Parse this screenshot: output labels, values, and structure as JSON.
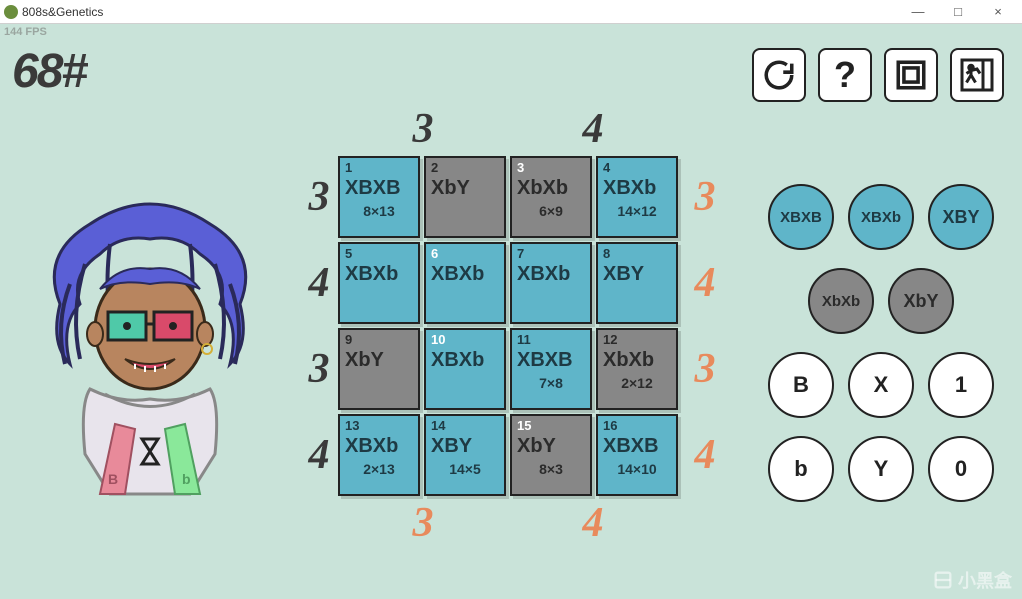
{
  "window": {
    "title": "808s&Genetics",
    "minimize": "—",
    "maximize": "□",
    "close": "×"
  },
  "hud": {
    "fps": "144 FPS",
    "score": "68#"
  },
  "toolbar": {
    "reload": "reload",
    "help": "?",
    "layout": "layout",
    "exit": "exit"
  },
  "colors": {
    "bg": "#c9e3d9",
    "cell_blue": "#5fb5c9",
    "cell_gray": "#878787",
    "accent_orange": "#e88a5c",
    "text_dark": "#3a3a3a"
  },
  "board": {
    "col_top": [
      "3",
      "4"
    ],
    "col_bottom": [
      "3",
      "4"
    ],
    "row_left": [
      "3",
      "4",
      "3",
      "4"
    ],
    "row_right": [
      "3",
      "4",
      "3",
      "4"
    ],
    "cells": [
      {
        "idx": "1",
        "idx_color": "dark",
        "geno": "XBXB",
        "sub": "8×13",
        "color": "blue"
      },
      {
        "idx": "2",
        "idx_color": "dark",
        "geno": "XbY",
        "sub": "",
        "color": "gray"
      },
      {
        "idx": "3",
        "idx_color": "white",
        "geno": "XbXb",
        "sub": "6×9",
        "color": "gray"
      },
      {
        "idx": "4",
        "idx_color": "dark",
        "geno": "XBXb",
        "sub": "14×12",
        "color": "blue"
      },
      {
        "idx": "5",
        "idx_color": "dark",
        "geno": "XBXb",
        "sub": "",
        "color": "blue"
      },
      {
        "idx": "6",
        "idx_color": "white",
        "geno": "XBXb",
        "sub": "",
        "color": "blue"
      },
      {
        "idx": "7",
        "idx_color": "dark",
        "geno": "XBXb",
        "sub": "",
        "color": "blue"
      },
      {
        "idx": "8",
        "idx_color": "dark",
        "geno": "XBY",
        "sub": "",
        "color": "blue"
      },
      {
        "idx": "9",
        "idx_color": "dark",
        "geno": "XbY",
        "sub": "",
        "color": "gray"
      },
      {
        "idx": "10",
        "idx_color": "white",
        "geno": "XBXb",
        "sub": "",
        "color": "blue"
      },
      {
        "idx": "11",
        "idx_color": "dark",
        "geno": "XBXB",
        "sub": "7×8",
        "color": "blue"
      },
      {
        "idx": "12",
        "idx_color": "dark",
        "geno": "XbXb",
        "sub": "2×12",
        "color": "gray"
      },
      {
        "idx": "13",
        "idx_color": "dark",
        "geno": "XBXb",
        "sub": "2×13",
        "color": "blue"
      },
      {
        "idx": "14",
        "idx_color": "dark",
        "geno": "XBY",
        "sub": "14×5",
        "color": "blue"
      },
      {
        "idx": "15",
        "idx_color": "white",
        "geno": "XbY",
        "sub": "8×3",
        "color": "gray"
      },
      {
        "idx": "16",
        "idx_color": "dark",
        "geno": "XBXB",
        "sub": "14×10",
        "color": "blue"
      }
    ]
  },
  "palette": {
    "row1": [
      {
        "label": "XBXB",
        "color": "blue"
      },
      {
        "label": "XBXb",
        "color": "blue"
      },
      {
        "label": "XBY",
        "color": "blue"
      }
    ],
    "row2": [
      {
        "label": "XbXb",
        "color": "gray"
      },
      {
        "label": "XbY",
        "color": "gray"
      }
    ],
    "row3": [
      {
        "label": "B",
        "color": "white"
      },
      {
        "label": "X",
        "color": "white"
      },
      {
        "label": "1",
        "color": "white"
      }
    ],
    "row4": [
      {
        "label": "b",
        "color": "white"
      },
      {
        "label": "Y",
        "color": "white"
      },
      {
        "label": "0",
        "color": "white"
      }
    ]
  },
  "watermark": "小黑盒"
}
